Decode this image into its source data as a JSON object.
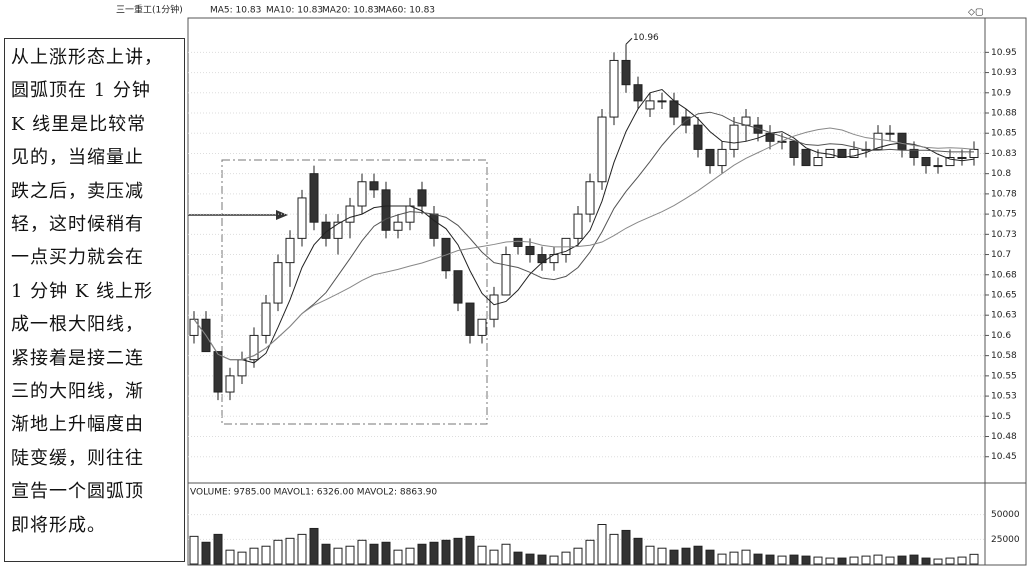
{
  "chart_data": {
    "type": "candlestick",
    "title": "三一重工(1分钟)",
    "indicators": [
      "MA5: 10.83",
      "MA10: 10.83",
      "MA20: 10.83",
      "MA60: 10.83"
    ],
    "volume_title": "VOLUME: 9785.00  MAVOL1: 6326.00  MAVOL2: 8863.90",
    "max_label": {
      "value": 10.96,
      "label": "10.96"
    },
    "ylim": [
      10.42,
      10.99
    ],
    "yticks": [
      10.45,
      {
        "value": 10.475,
        "label": "10.48"
      },
      10.5,
      {
        "value": 10.525,
        "label": "10.53"
      },
      10.55,
      {
        "value": 10.575,
        "label": "10.58"
      },
      10.6,
      {
        "value": 10.625,
        "label": "10.63"
      },
      10.65,
      {
        "value": 10.675,
        "label": "10.68"
      },
      10.7,
      {
        "value": 10.725,
        "label": "10.73"
      },
      10.75,
      {
        "value": 10.775,
        "label": "10.78"
      },
      10.8,
      {
        "value": 10.825,
        "label": "10.83"
      },
      10.85,
      {
        "value": 10.875,
        "label": "10.88"
      },
      10.9,
      {
        "value": 10.925,
        "label": "10.93"
      },
      10.95
    ],
    "ohlc": [
      [
        10.6,
        10.63,
        10.59,
        10.62
      ],
      [
        10.62,
        10.63,
        10.58,
        10.58
      ],
      [
        10.58,
        10.58,
        10.52,
        10.53
      ],
      [
        10.53,
        10.56,
        10.52,
        10.55
      ],
      [
        10.55,
        10.58,
        10.54,
        10.57
      ],
      [
        10.57,
        10.61,
        10.56,
        10.6
      ],
      [
        10.6,
        10.65,
        10.59,
        10.64
      ],
      [
        10.64,
        10.7,
        10.63,
        10.69
      ],
      [
        10.69,
        10.73,
        10.66,
        10.72
      ],
      [
        10.72,
        10.78,
        10.71,
        10.77
      ],
      [
        10.8,
        10.81,
        10.73,
        10.74
      ],
      [
        10.74,
        10.75,
        10.71,
        10.72
      ],
      [
        10.72,
        10.75,
        10.7,
        10.74
      ],
      [
        10.74,
        10.77,
        10.72,
        10.76
      ],
      [
        10.76,
        10.8,
        10.75,
        10.79
      ],
      [
        10.79,
        10.8,
        10.77,
        10.78
      ],
      [
        10.78,
        10.79,
        10.72,
        10.73
      ],
      [
        10.73,
        10.75,
        10.72,
        10.74
      ],
      [
        10.74,
        10.77,
        10.73,
        10.76
      ],
      [
        10.78,
        10.79,
        10.75,
        10.76
      ],
      [
        10.75,
        10.76,
        10.71,
        10.72
      ],
      [
        10.72,
        10.72,
        10.67,
        10.68
      ],
      [
        10.68,
        10.68,
        10.63,
        10.64
      ],
      [
        10.64,
        10.64,
        10.59,
        10.6
      ],
      [
        10.6,
        10.62,
        10.59,
        10.62
      ],
      [
        10.62,
        10.66,
        10.61,
        10.65
      ],
      [
        10.65,
        10.71,
        10.65,
        10.7
      ],
      [
        10.72,
        10.72,
        10.7,
        10.71
      ],
      [
        10.71,
        10.72,
        10.69,
        10.7
      ],
      [
        10.7,
        10.71,
        10.68,
        10.69
      ],
      [
        10.69,
        10.71,
        10.68,
        10.7
      ],
      [
        10.7,
        10.72,
        10.69,
        10.72
      ],
      [
        10.72,
        10.76,
        10.71,
        10.75
      ],
      [
        10.75,
        10.8,
        10.74,
        10.79
      ],
      [
        10.79,
        10.88,
        10.78,
        10.87
      ],
      [
        10.87,
        10.95,
        10.86,
        10.94
      ],
      [
        10.94,
        10.96,
        10.9,
        10.91
      ],
      [
        10.91,
        10.92,
        10.88,
        10.89
      ],
      [
        10.88,
        10.9,
        10.87,
        10.89
      ],
      [
        10.89,
        10.9,
        10.88,
        10.89
      ],
      [
        10.89,
        10.9,
        10.86,
        10.87
      ],
      [
        10.87,
        10.88,
        10.85,
        10.86
      ],
      [
        10.86,
        10.87,
        10.82,
        10.83
      ],
      [
        10.83,
        10.83,
        10.8,
        10.81
      ],
      [
        10.81,
        10.84,
        10.8,
        10.83
      ],
      [
        10.83,
        10.87,
        10.82,
        10.86
      ],
      [
        10.86,
        10.88,
        10.84,
        10.87
      ],
      [
        10.86,
        10.87,
        10.84,
        10.85
      ],
      [
        10.85,
        10.86,
        10.83,
        10.84
      ],
      [
        10.84,
        10.85,
        10.83,
        10.84
      ],
      [
        10.84,
        10.84,
        10.81,
        10.82
      ],
      [
        10.83,
        10.83,
        10.81,
        10.81
      ],
      [
        10.81,
        10.83,
        10.81,
        10.82
      ],
      [
        10.82,
        10.83,
        10.82,
        10.83
      ],
      [
        10.83,
        10.83,
        10.82,
        10.82
      ],
      [
        10.82,
        10.84,
        10.82,
        10.83
      ],
      [
        10.83,
        10.84,
        10.82,
        10.83
      ],
      [
        10.83,
        10.86,
        10.83,
        10.85
      ],
      [
        10.85,
        10.86,
        10.84,
        10.85
      ],
      [
        10.85,
        10.85,
        10.82,
        10.83
      ],
      [
        10.83,
        10.84,
        10.81,
        10.82
      ],
      [
        10.82,
        10.82,
        10.8,
        10.81
      ],
      [
        10.81,
        10.82,
        10.8,
        10.81
      ],
      [
        10.81,
        10.83,
        10.81,
        10.82
      ],
      [
        10.82,
        10.83,
        10.81,
        10.82
      ],
      [
        10.82,
        10.84,
        10.81,
        10.83
      ]
    ],
    "volume": [
      28000,
      22000,
      30000,
      14000,
      12000,
      16000,
      18000,
      24000,
      26000,
      30000,
      36000,
      20000,
      16000,
      18000,
      24000,
      20000,
      22000,
      14000,
      16000,
      20000,
      22000,
      24000,
      26000,
      28000,
      18000,
      14000,
      20000,
      12000,
      10000,
      9000,
      8000,
      12000,
      16000,
      24000,
      40000,
      30000,
      34000,
      26000,
      18000,
      16000,
      14000,
      16000,
      18000,
      14000,
      10000,
      12000,
      14000,
      10000,
      9000,
      8000,
      9000,
      8000,
      7000,
      6000,
      6000,
      7000,
      8000,
      9000,
      7000,
      8000,
      9000,
      6000,
      5000,
      6000,
      7000,
      9785
    ],
    "volume_ylim": [
      0,
      80000
    ],
    "volume_yticks": [
      25000,
      50000
    ],
    "text_lines": [
      "从上涨形态上讲，",
      "圆弧顶在 1 分钟",
      "K 线里是比较常",
      "见的，当缩量止",
      "跌之后，卖压减",
      "轻，这时候稍有",
      "一点买力就会在",
      "1 分钟 K 线上形",
      "成一根大阳线，",
      "紧接着是接二连",
      "三的大阳线，渐",
      "渐地上升幅度由",
      "陡变缓，则往往",
      "宣告一个圆弧顶",
      "即将形成。"
    ]
  }
}
